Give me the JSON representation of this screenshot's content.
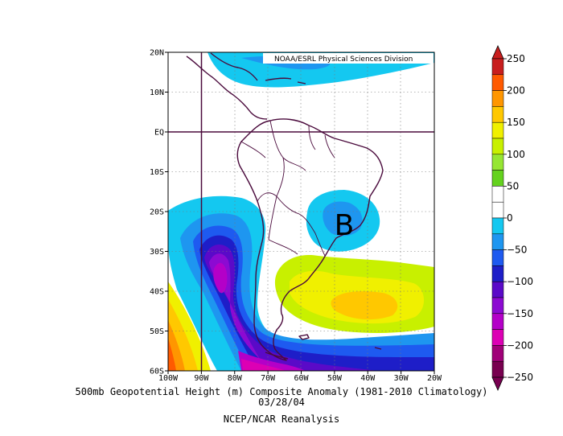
{
  "map": {
    "credit": "NOAA/ESRL Physical Sciences Division",
    "marker_label": "B",
    "lat_ticks": [
      "20N",
      "10N",
      "EQ",
      "10S",
      "20S",
      "30S",
      "40S",
      "50S",
      "60S"
    ],
    "lon_ticks": [
      "100W",
      "90W",
      "80W",
      "70W",
      "60W",
      "50W",
      "40W",
      "30W",
      "20W"
    ],
    "reference_lines": [
      "EQ",
      "90W"
    ]
  },
  "colorbar": {
    "labels": [
      "250",
      "200",
      "150",
      "100",
      "50",
      "0",
      "−50",
      "−100",
      "−150",
      "−200",
      "−250"
    ],
    "colors": [
      "#c81e1e",
      "#ff5a00",
      "#ff9600",
      "#ffc800",
      "#f0f000",
      "#c8f000",
      "#96e632",
      "#64d21e",
      "#ffffff",
      "#ffffff",
      "#14c8f0",
      "#1e96f0",
      "#1e5af0",
      "#1e1ec8",
      "#5a0ac8",
      "#8c0ad2",
      "#b400c8",
      "#dc00b4",
      "#a00078",
      "#780050"
    ]
  },
  "captions": {
    "line1": "500mb Geopotential Height (m) Composite Anomaly (1981-2010 Climatology)",
    "line2": "03/28/04",
    "line3": "NCEP/NCAR Reanalysis"
  }
}
